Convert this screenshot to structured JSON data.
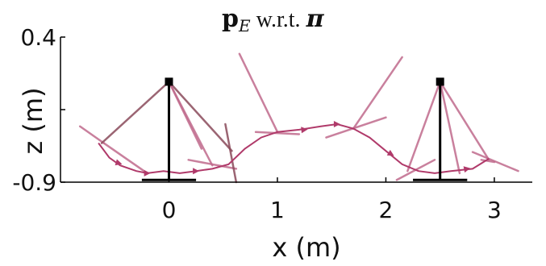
{
  "chart_data": {
    "type": "line",
    "title": {
      "main": "p",
      "subscript": "E",
      "middle": " w.r.t. ",
      "symbol": "π"
    },
    "xlabel": "x (m)",
    "ylabel": "z (m)",
    "xlim": [
      -1.0,
      3.35
    ],
    "ylim": [
      -0.9,
      0.4
    ],
    "xticks": [
      "0",
      "1",
      "2",
      "3"
    ],
    "xtick_values": [
      0,
      1,
      2,
      3
    ],
    "yticks": [
      "0.4",
      "-0.9"
    ],
    "ytick_values": [
      0.4,
      -0.9
    ],
    "grid": false,
    "colors": {
      "trajectory": "#b03a6a",
      "segment": "#c06a8c",
      "segment_dark": "#8a4a5a",
      "stance": "#000000",
      "axis": "#000000"
    },
    "trajectory": {
      "x": [
        -0.65,
        -0.55,
        -0.45,
        -0.3,
        -0.2,
        -0.05,
        0.1,
        0.25,
        0.4,
        0.55,
        0.7,
        0.85,
        1.0,
        1.2,
        1.4,
        1.55,
        1.7,
        1.85,
        2.0,
        2.15,
        2.3,
        2.45,
        2.6,
        2.8,
        2.95
      ],
      "y": [
        -0.55,
        -0.68,
        -0.75,
        -0.8,
        -0.82,
        -0.8,
        -0.82,
        -0.8,
        -0.78,
        -0.74,
        -0.6,
        -0.5,
        -0.45,
        -0.43,
        -0.4,
        -0.38,
        -0.42,
        -0.5,
        -0.62,
        -0.74,
        -0.8,
        -0.82,
        -0.8,
        -0.78,
        -0.69
      ]
    },
    "arrows": [
      {
        "x": -0.46,
        "y": -0.73,
        "dir": [
          1,
          -0.3
        ]
      },
      {
        "x": -0.2,
        "y": -0.82,
        "dir": [
          1,
          0
        ]
      },
      {
        "x": 0.25,
        "y": -0.8,
        "dir": [
          1,
          0
        ]
      },
      {
        "x": 1.25,
        "y": -0.43,
        "dir": [
          1,
          0.1
        ]
      },
      {
        "x": 1.55,
        "y": -0.38,
        "dir": [
          1,
          0
        ]
      },
      {
        "x": 2.05,
        "y": -0.65,
        "dir": [
          1,
          -0.6
        ]
      },
      {
        "x": 2.75,
        "y": -0.78,
        "dir": [
          1,
          0.2
        ]
      }
    ],
    "stance_feet": [
      {
        "x": 0.0,
        "top_y": 0.0,
        "base_y": -0.88,
        "base_half_width": 0.25
      },
      {
        "x": 2.5,
        "top_y": 0.0,
        "base_y": -0.88,
        "base_half_width": 0.25
      }
    ],
    "frame_segments": [
      {
        "x1": -0.82,
        "y1": -0.4,
        "x2": -0.6,
        "y2": -0.55,
        "tone": "segment"
      },
      {
        "x1": -0.62,
        "y1": -0.55,
        "x2": 0.0,
        "y2": 0.0,
        "tone": "segment_dark"
      },
      {
        "x1": -0.6,
        "y1": -0.55,
        "x2": -0.2,
        "y2": -0.82,
        "tone": "segment"
      },
      {
        "x1": 0.0,
        "y1": 0.0,
        "x2": 0.58,
        "y2": -0.62,
        "tone": "segment_dark"
      },
      {
        "x1": 0.0,
        "y1": 0.0,
        "x2": 0.4,
        "y2": -0.75,
        "tone": "segment"
      },
      {
        "x1": 0.0,
        "y1": 0.0,
        "x2": 0.3,
        "y2": -0.6,
        "tone": "segment"
      },
      {
        "x1": 0.18,
        "y1": -0.7,
        "x2": 0.62,
        "y2": -0.78,
        "tone": "segment"
      },
      {
        "x1": 0.52,
        "y1": -0.38,
        "x2": 0.62,
        "y2": -0.9,
        "tone": "segment_dark"
      },
      {
        "x1": 0.65,
        "y1": 0.25,
        "x2": 1.0,
        "y2": -0.45,
        "tone": "segment"
      },
      {
        "x1": 0.8,
        "y1": -0.45,
        "x2": 1.2,
        "y2": -0.47,
        "tone": "segment"
      },
      {
        "x1": 1.7,
        "y1": -0.42,
        "x2": 2.15,
        "y2": 0.22,
        "tone": "segment"
      },
      {
        "x1": 1.45,
        "y1": -0.5,
        "x2": 2.0,
        "y2": -0.32,
        "tone": "segment"
      },
      {
        "x1": 2.1,
        "y1": -0.88,
        "x2": 2.45,
        "y2": -0.7,
        "tone": "segment"
      },
      {
        "x1": 2.2,
        "y1": -0.8,
        "x2": 2.5,
        "y2": 0.0,
        "tone": "segment"
      },
      {
        "x1": 2.5,
        "y1": 0.0,
        "x2": 2.95,
        "y2": -0.7,
        "tone": "segment"
      },
      {
        "x1": 2.5,
        "y1": 0.0,
        "x2": 2.68,
        "y2": -0.82,
        "tone": "segment"
      },
      {
        "x1": 2.8,
        "y1": -0.63,
        "x2": 3.22,
        "y2": -0.8,
        "tone": "segment"
      },
      {
        "x1": 2.88,
        "y1": -0.7,
        "x2": 3.0,
        "y2": -0.72,
        "tone": "segment"
      }
    ]
  }
}
